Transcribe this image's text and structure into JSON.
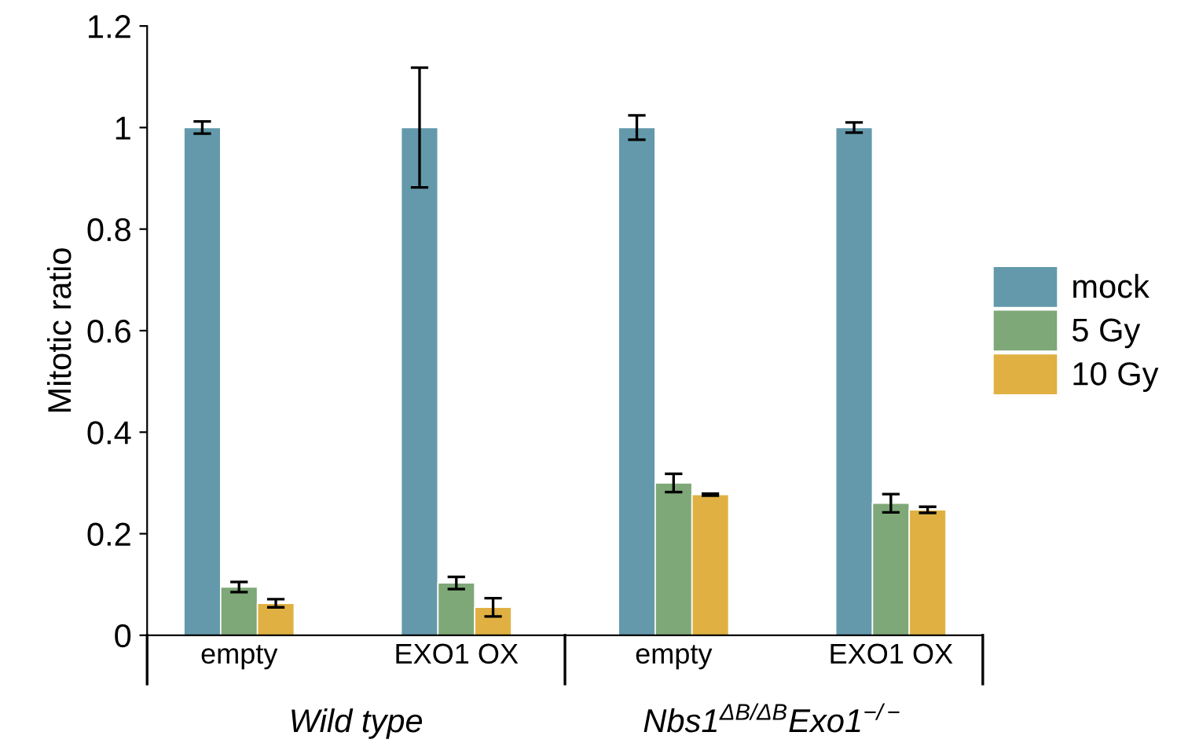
{
  "chart_data": {
    "type": "bar",
    "ylabel": "Mitotic ratio",
    "categories": [
      "empty",
      "EXO1 OX",
      "empty",
      "EXO1 OX"
    ],
    "series": [
      {
        "name": "mock",
        "color": "#6399ab",
        "values": [
          1.0,
          1.0,
          1.0,
          1.0
        ],
        "errors": [
          0.012,
          0.118,
          0.024,
          0.01
        ]
      },
      {
        "name": "5 Gy",
        "color": "#7ea877",
        "values": [
          0.095,
          0.103,
          0.3,
          0.26
        ],
        "errors": [
          0.01,
          0.012,
          0.018,
          0.018
        ]
      },
      {
        "name": "10 Gy",
        "color": "#e0b142",
        "values": [
          0.063,
          0.055,
          0.277,
          0.247
        ],
        "errors": [
          0.008,
          0.018,
          0.002,
          0.006
        ]
      }
    ],
    "annotations": [
      "Wild type",
      "Nbs1$^{ΔB/ΔB}$Exo1$^{−/−}$"
    ],
    "ylim": [
      0,
      1.2
    ],
    "yticks": [
      0,
      0.2,
      0.4,
      0.6,
      0.8,
      1,
      1.2
    ],
    "grid": false,
    "legend": "right"
  }
}
